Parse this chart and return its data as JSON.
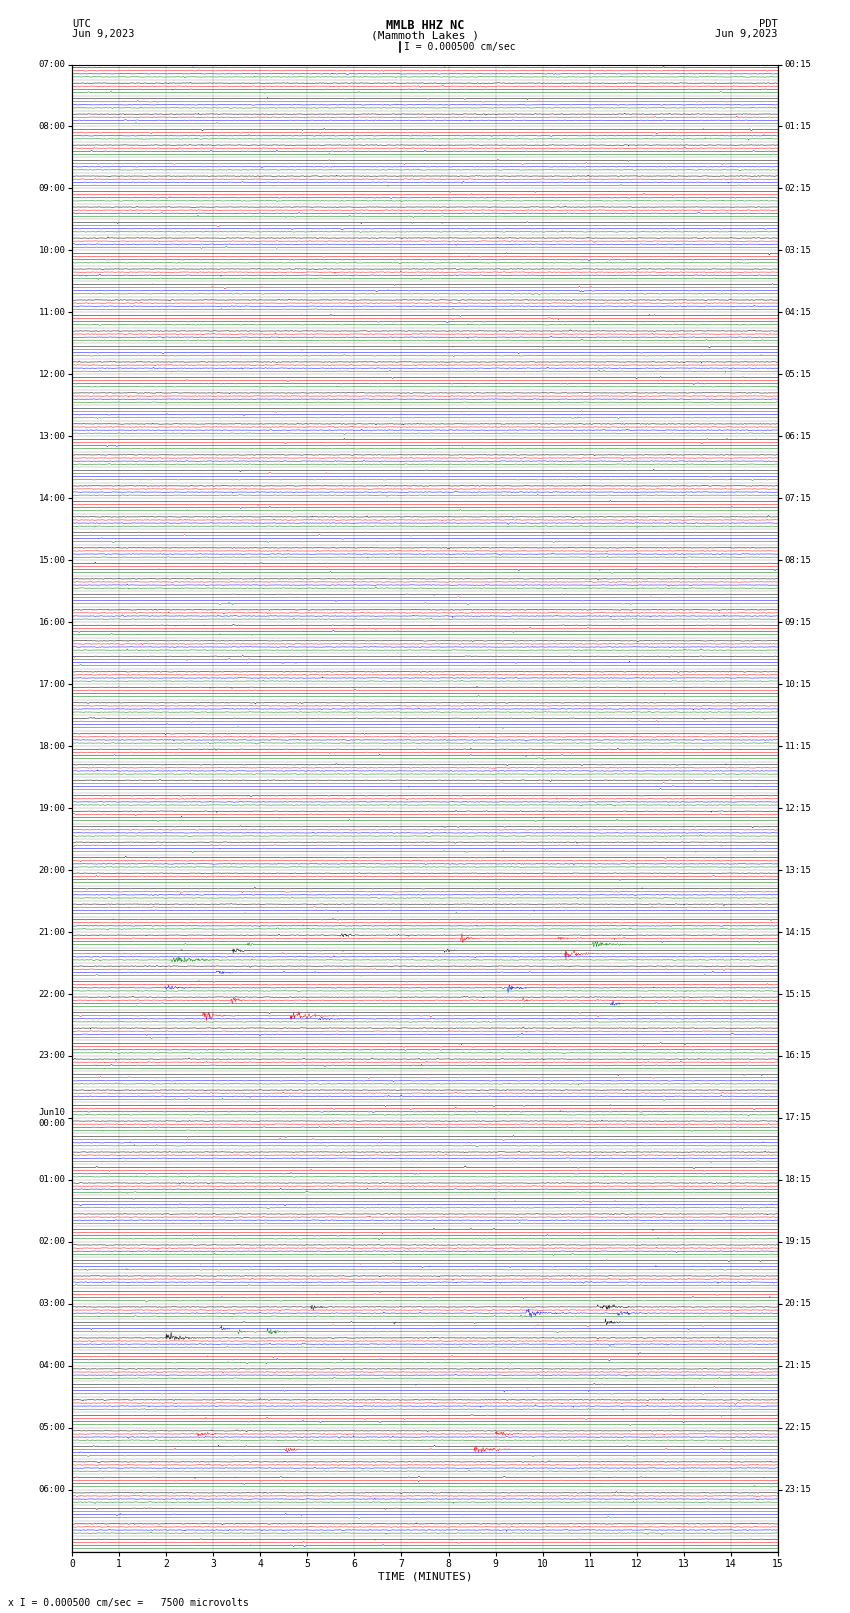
{
  "title_line1": "MMLB HHZ NC",
  "title_line2": "(Mammoth Lakes )",
  "scale_label": "I = 0.000500 cm/sec",
  "bottom_label": "x I = 0.000500 cm/sec =   7500 microvolts",
  "utc_label": "UTC\nJun 9,2023",
  "pdt_label": "PDT\nJun 9,2023",
  "xlabel": "TIME (MINUTES)",
  "bg_color": "#ffffff",
  "trace_colors": [
    "black",
    "red",
    "blue",
    "green"
  ],
  "grid_color": "#999999",
  "left_times_labeled": [
    [
      0,
      "07:00"
    ],
    [
      4,
      "08:00"
    ],
    [
      8,
      "09:00"
    ],
    [
      12,
      "10:00"
    ],
    [
      16,
      "11:00"
    ],
    [
      20,
      "12:00"
    ],
    [
      24,
      "13:00"
    ],
    [
      28,
      "14:00"
    ],
    [
      32,
      "15:00"
    ],
    [
      36,
      "16:00"
    ],
    [
      40,
      "17:00"
    ],
    [
      44,
      "18:00"
    ],
    [
      48,
      "19:00"
    ],
    [
      52,
      "20:00"
    ],
    [
      56,
      "21:00"
    ],
    [
      60,
      "22:00"
    ],
    [
      64,
      "23:00"
    ],
    [
      68,
      "Jun10\n00:00"
    ],
    [
      72,
      "01:00"
    ],
    [
      76,
      "02:00"
    ],
    [
      80,
      "03:00"
    ],
    [
      84,
      "04:00"
    ],
    [
      88,
      "05:00"
    ],
    [
      92,
      "06:00"
    ]
  ],
  "right_times_labeled": [
    [
      0,
      "00:15"
    ],
    [
      4,
      "01:15"
    ],
    [
      8,
      "02:15"
    ],
    [
      12,
      "03:15"
    ],
    [
      16,
      "04:15"
    ],
    [
      20,
      "05:15"
    ],
    [
      24,
      "06:15"
    ],
    [
      28,
      "07:15"
    ],
    [
      32,
      "08:15"
    ],
    [
      36,
      "09:15"
    ],
    [
      40,
      "10:15"
    ],
    [
      44,
      "11:15"
    ],
    [
      48,
      "12:15"
    ],
    [
      52,
      "13:15"
    ],
    [
      56,
      "14:15"
    ],
    [
      60,
      "15:15"
    ],
    [
      64,
      "16:15"
    ],
    [
      68,
      "17:15"
    ],
    [
      72,
      "18:15"
    ],
    [
      76,
      "19:15"
    ],
    [
      80,
      "20:15"
    ],
    [
      84,
      "21:15"
    ],
    [
      88,
      "22:15"
    ],
    [
      92,
      "23:15"
    ]
  ],
  "n_rows": 96,
  "n_traces": 4,
  "noise_scale": 0.012,
  "spike_prob": 0.35,
  "spike_scale": 0.04,
  "x_ticks": [
    0,
    1,
    2,
    3,
    4,
    5,
    6,
    7,
    8,
    9,
    10,
    11,
    12,
    13,
    14,
    15
  ],
  "event_rows_black": [
    56,
    57,
    80,
    81,
    82
  ],
  "event_rows_red": [
    56,
    57,
    60,
    61,
    88,
    89
  ],
  "event_rows_blue": [
    58,
    59,
    60,
    61,
    80,
    81
  ],
  "event_rows_green": [
    56,
    57,
    80,
    81
  ],
  "event_amp": 0.1
}
